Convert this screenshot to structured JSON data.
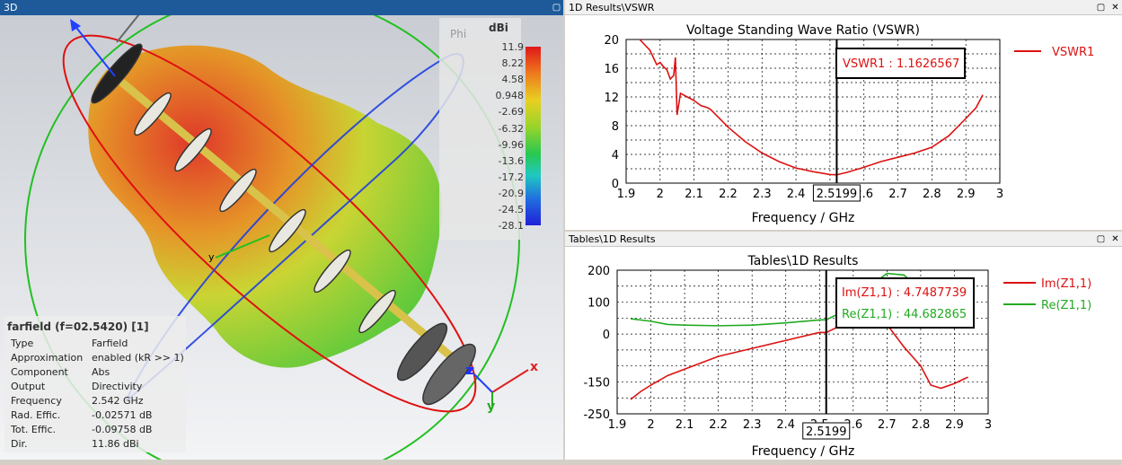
{
  "left_pane": {
    "title": "3D",
    "info": {
      "title": "farfield (f=02.5420) [1]",
      "rows": [
        {
          "k": "Type",
          "v": "Farfield"
        },
        {
          "k": "Approximation",
          "v": "enabled (kR >> 1)"
        },
        {
          "k": "Component",
          "v": "Abs"
        },
        {
          "k": "Output",
          "v": "Directivity"
        },
        {
          "k": "Frequency",
          "v": "2.542 GHz"
        },
        {
          "k": "Rad. Effic.",
          "v": "-0.02571 dB"
        },
        {
          "k": "Tot. Effic.",
          "v": "-0.09758 dB"
        },
        {
          "k": "Dir.",
          "v": "11.86 dBi"
        }
      ]
    },
    "colorbar": {
      "unit": "dBi",
      "phi_label": "Phi",
      "ticks": [
        "11.9",
        "8.22",
        "4.58",
        "0.948",
        "-2.69",
        "-6.32",
        "-9.96",
        "-13.6",
        "-17.2",
        "-20.9",
        "-24.5",
        "-28.1"
      ]
    },
    "axis_labels": {
      "x": "x",
      "y": "y",
      "z": "z",
      "triad_x": "x",
      "triad_y": "y",
      "triad_z": "z"
    }
  },
  "vswr_pane": {
    "title": "1D Results\\VSWR",
    "chart_title": "Voltage Standing Wave Ratio (VSWR)",
    "xlabel": "Frequency / GHz",
    "x_ticks": [
      "1.9",
      "2",
      "2.1",
      "2.2",
      "2.3",
      "2.4",
      "2.5",
      "2.6",
      "2.7",
      "2.8",
      "2.9",
      "3"
    ],
    "y_ticks": [
      "0",
      "4",
      "8",
      "12",
      "16",
      "20"
    ],
    "legend": "VSWR1",
    "marker_label": "VSWR1 : 1.1626567",
    "cursor_label": "2.5199"
  },
  "z_pane": {
    "title": "Tables\\1D Results",
    "chart_title": "Tables\\1D Results",
    "xlabel": "Frequency / GHz",
    "x_ticks": [
      "1.9",
      "2",
      "2.1",
      "2.2",
      "2.3",
      "2.4",
      "2.5",
      "2.6",
      "2.7",
      "2.8",
      "2.9",
      "3"
    ],
    "y_ticks": [
      "200",
      "100",
      "0",
      "-150",
      "-250"
    ],
    "legend": [
      "Im(Z1,1)",
      "Re(Z1,1)"
    ],
    "marker_im": "Im(Z1,1) : 4.7487739",
    "marker_re": "Re(Z1,1) : 44.682865",
    "cursor_label": "2.5199"
  },
  "colors": {
    "vswr": "#dd1111",
    "im": "#dd1111",
    "re": "#22aa22",
    "title_active": "#1e5a9a"
  },
  "chart_data": [
    {
      "type": "line",
      "title": "Voltage Standing Wave Ratio (VSWR)",
      "xlabel": "Frequency / GHz",
      "ylabel": "",
      "xlim": [
        1.9,
        3.0
      ],
      "ylim": [
        0,
        20
      ],
      "grid": true,
      "legend_position": "right",
      "series": [
        {
          "name": "VSWR1",
          "x": [
            1.94,
            1.97,
            1.98,
            1.99,
            2.0,
            2.01,
            2.02,
            2.03,
            2.04,
            2.045,
            2.05,
            2.06,
            2.08,
            2.1,
            2.12,
            2.14,
            2.15,
            2.2,
            2.25,
            2.3,
            2.35,
            2.4,
            2.45,
            2.5,
            2.52,
            2.55,
            2.6,
            2.65,
            2.7,
            2.75,
            2.8,
            2.85,
            2.9,
            2.93,
            2.95
          ],
          "y": [
            20,
            18.5,
            17.5,
            16.5,
            16.8,
            16.2,
            15.8,
            14.5,
            15.0,
            17.5,
            9.5,
            12.5,
            12.0,
            11.5,
            10.8,
            10.5,
            10.2,
            7.8,
            5.8,
            4.2,
            3.0,
            2.1,
            1.6,
            1.2,
            1.16,
            1.5,
            2.2,
            3.0,
            3.6,
            4.2,
            5.0,
            6.6,
            9.0,
            10.5,
            12.3
          ]
        }
      ]
    },
    {
      "type": "line",
      "title": "Tables\\1D Results",
      "xlabel": "Frequency / GHz",
      "ylabel": "",
      "xlim": [
        1.9,
        3.0
      ],
      "ylim": [
        -250,
        200
      ],
      "grid": true,
      "legend_position": "right",
      "series": [
        {
          "name": "Im(Z1,1)",
          "x": [
            1.94,
            1.97,
            2.0,
            2.05,
            2.1,
            2.15,
            2.2,
            2.3,
            2.4,
            2.5,
            2.52,
            2.55,
            2.6,
            2.62,
            2.65,
            2.7,
            2.75,
            2.8,
            2.83,
            2.86,
            2.9,
            2.94
          ],
          "y": [
            -205,
            -180,
            -160,
            -130,
            -110,
            -90,
            -70,
            -45,
            -20,
            5,
            4.7,
            20,
            60,
            95,
            80,
            30,
            -40,
            -100,
            -160,
            -170,
            -155,
            -135
          ]
        },
        {
          "name": "Re(Z1,1)",
          "x": [
            1.94,
            2.0,
            2.05,
            2.1,
            2.2,
            2.3,
            2.4,
            2.5,
            2.52,
            2.55,
            2.6,
            2.65,
            2.7,
            2.75,
            2.8
          ],
          "y": [
            48,
            40,
            30,
            28,
            26,
            28,
            35,
            44,
            44.7,
            60,
            100,
            150,
            190,
            185,
            140
          ]
        }
      ]
    }
  ]
}
